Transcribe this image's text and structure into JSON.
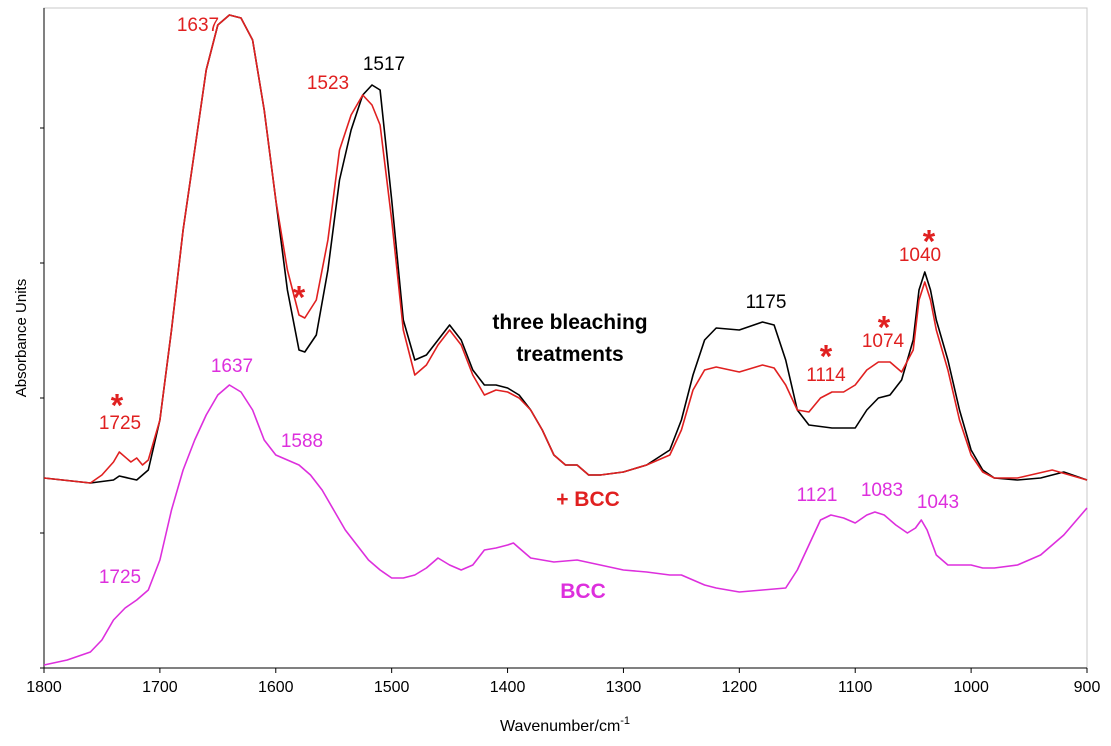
{
  "chart_data": {
    "type": "line",
    "y_label": "Absorbance Units",
    "x_label": {
      "text": "Wavenumber/cm",
      "superscript": "-1"
    },
    "xlim": [
      1800,
      900
    ],
    "xticks": [
      1800,
      1700,
      1600,
      1500,
      1400,
      1300,
      1200,
      1100,
      1000,
      900
    ],
    "ylim": [
      0,
      660
    ],
    "yticks": [
      0,
      135,
      270,
      405,
      540
    ],
    "series": [
      {
        "name": "three bleaching treatments",
        "color": "#000000",
        "x": [
          1800,
          1760,
          1740,
          1735,
          1720,
          1710,
          1700,
          1690,
          1680,
          1670,
          1660,
          1650,
          1640,
          1630,
          1620,
          1610,
          1600,
          1590,
          1580,
          1575,
          1565,
          1555,
          1545,
          1535,
          1525,
          1517,
          1510,
          1500,
          1490,
          1480,
          1470,
          1460,
          1450,
          1440,
          1430,
          1420,
          1410,
          1400,
          1390,
          1380,
          1370,
          1360,
          1350,
          1340,
          1330,
          1320,
          1300,
          1280,
          1260,
          1250,
          1240,
          1230,
          1220,
          1200,
          1180,
          1170,
          1160,
          1150,
          1140,
          1120,
          1100,
          1090,
          1080,
          1070,
          1060,
          1050,
          1045,
          1040,
          1035,
          1030,
          1020,
          1010,
          1000,
          990,
          980,
          960,
          940,
          920,
          900
        ],
        "values": [
          190,
          185,
          188,
          192,
          188,
          198,
          248,
          338,
          438,
          518,
          598,
          643,
          653,
          650,
          628,
          558,
          468,
          378,
          318,
          316,
          333,
          398,
          488,
          538,
          573,
          583,
          578,
          468,
          348,
          308,
          313,
          328,
          343,
          328,
          298,
          283,
          283,
          280,
          273,
          258,
          238,
          213,
          203,
          203,
          193,
          193,
          196,
          203,
          218,
          248,
          293,
          328,
          340,
          338,
          346,
          343,
          308,
          258,
          243,
          240,
          240,
          258,
          270,
          273,
          288,
          328,
          378,
          396,
          378,
          348,
          308,
          258,
          218,
          198,
          190,
          188,
          190,
          196,
          188
        ]
      },
      {
        "name": "+ BCC",
        "color": "#e02020",
        "x": [
          1800,
          1760,
          1750,
          1740,
          1735,
          1725,
          1720,
          1715,
          1710,
          1700,
          1690,
          1680,
          1670,
          1660,
          1650,
          1640,
          1630,
          1620,
          1610,
          1600,
          1590,
          1580,
          1575,
          1565,
          1555,
          1545,
          1535,
          1525,
          1517,
          1510,
          1500,
          1490,
          1480,
          1470,
          1460,
          1450,
          1440,
          1430,
          1420,
          1410,
          1400,
          1390,
          1380,
          1370,
          1360,
          1350,
          1340,
          1330,
          1320,
          1300,
          1280,
          1260,
          1250,
          1240,
          1230,
          1220,
          1200,
          1180,
          1170,
          1160,
          1150,
          1140,
          1130,
          1120,
          1110,
          1100,
          1090,
          1080,
          1070,
          1060,
          1050,
          1045,
          1040,
          1035,
          1030,
          1020,
          1010,
          1000,
          990,
          980,
          960,
          930,
          900
        ],
        "values": [
          190,
          185,
          193,
          206,
          216,
          206,
          210,
          203,
          208,
          248,
          338,
          438,
          518,
          598,
          643,
          653,
          650,
          628,
          558,
          468,
          398,
          353,
          350,
          368,
          428,
          518,
          553,
          573,
          563,
          543,
          448,
          338,
          293,
          303,
          323,
          338,
          323,
          293,
          273,
          278,
          276,
          270,
          258,
          238,
          213,
          203,
          203,
          193,
          193,
          196,
          203,
          213,
          238,
          278,
          298,
          301,
          296,
          303,
          300,
          283,
          258,
          256,
          270,
          276,
          276,
          283,
          298,
          306,
          306,
          296,
          318,
          368,
          386,
          368,
          338,
          298,
          248,
          213,
          196,
          190,
          190,
          198,
          188
        ]
      },
      {
        "name": "BCC",
        "color": "#dd2fdd",
        "x": [
          1800,
          1780,
          1760,
          1750,
          1740,
          1730,
          1720,
          1710,
          1700,
          1690,
          1680,
          1670,
          1660,
          1650,
          1640,
          1630,
          1620,
          1610,
          1600,
          1590,
          1580,
          1570,
          1560,
          1550,
          1540,
          1530,
          1520,
          1510,
          1500,
          1490,
          1480,
          1470,
          1460,
          1450,
          1440,
          1430,
          1420,
          1410,
          1400,
          1395,
          1390,
          1380,
          1370,
          1360,
          1340,
          1320,
          1300,
          1280,
          1260,
          1250,
          1240,
          1230,
          1220,
          1200,
          1180,
          1160,
          1150,
          1140,
          1130,
          1121,
          1110,
          1100,
          1090,
          1083,
          1075,
          1065,
          1055,
          1048,
          1043,
          1038,
          1030,
          1020,
          1000,
          990,
          980,
          960,
          940,
          920,
          900
        ],
        "values": [
          3,
          8,
          16,
          28,
          48,
          60,
          68,
          78,
          108,
          158,
          198,
          228,
          253,
          273,
          283,
          276,
          258,
          228,
          213,
          208,
          203,
          193,
          178,
          158,
          138,
          123,
          108,
          98,
          90,
          90,
          93,
          100,
          110,
          103,
          98,
          103,
          118,
          120,
          123,
          125,
          120,
          110,
          108,
          106,
          108,
          103,
          98,
          96,
          93,
          93,
          88,
          83,
          80,
          76,
          78,
          80,
          98,
          123,
          148,
          153,
          150,
          145,
          153,
          156,
          153,
          143,
          135,
          140,
          148,
          138,
          113,
          103,
          103,
          100,
          100,
          103,
          113,
          133,
          160
        ]
      }
    ],
    "annotations": [
      {
        "text": "1637",
        "color": "#e02020"
      },
      {
        "text": "1523",
        "color": "#e02020"
      },
      {
        "text": "1517",
        "color": "#000000"
      },
      {
        "text": "*",
        "color": "#e02020"
      },
      {
        "text": "*",
        "color": "#e02020"
      },
      {
        "text": "1725",
        "color": "#e02020"
      },
      {
        "text": "1175",
        "color": "#000000"
      },
      {
        "text": "*",
        "color": "#e02020"
      },
      {
        "text": "1114",
        "color": "#e02020"
      },
      {
        "text": "*",
        "color": "#e02020"
      },
      {
        "text": "1074",
        "color": "#e02020"
      },
      {
        "text": "*",
        "color": "#e02020"
      },
      {
        "text": "1040",
        "color": "#e02020"
      },
      {
        "text": "1637",
        "color": "#dd2fdd"
      },
      {
        "text": "1588",
        "color": "#dd2fdd"
      },
      {
        "text": "1725",
        "color": "#dd2fdd"
      },
      {
        "text": "1121",
        "color": "#dd2fdd"
      },
      {
        "text": "1083",
        "color": "#dd2fdd"
      },
      {
        "text": "1043",
        "color": "#dd2fdd"
      }
    ]
  }
}
